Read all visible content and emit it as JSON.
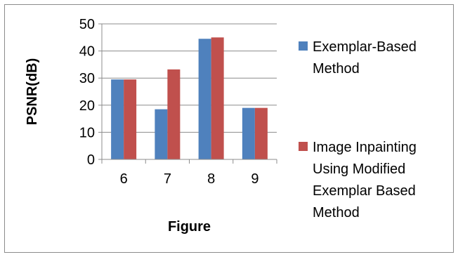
{
  "chart_data": {
    "type": "bar",
    "categories": [
      "6",
      "7",
      "8",
      "9"
    ],
    "series": [
      {
        "name": "Exemplar-Based Method",
        "name_lines": [
          "Exemplar-Based",
          "Method"
        ],
        "color": "#4f81bd",
        "values": [
          29.5,
          18.5,
          44.5,
          19
        ]
      },
      {
        "name": "Image Inpainting Using Modified Exemplar Based Method",
        "name_lines": [
          "Image Inpainting",
          "Using Modified",
          "Exemplar Based",
          "Method"
        ],
        "color": "#c0504d",
        "values": [
          29.5,
          33.2,
          45,
          19
        ]
      }
    ],
    "xlabel": "Figure",
    "ylabel": "PSNR(dB)",
    "ylim": [
      0,
      50
    ],
    "yticks": [
      0,
      10,
      20,
      30,
      40,
      50
    ],
    "grid": true,
    "grid_color": "#8c8c8c",
    "legend_position": "right"
  }
}
